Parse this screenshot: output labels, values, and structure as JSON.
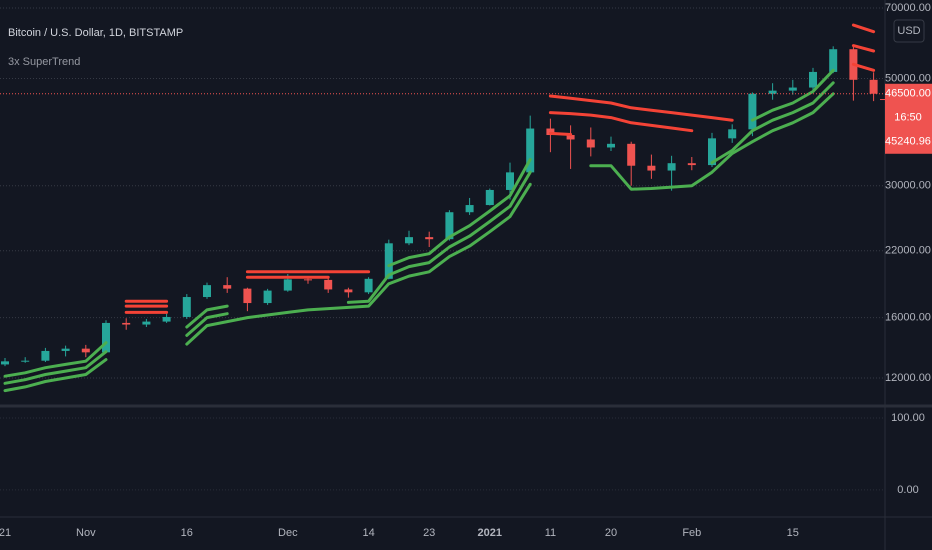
{
  "chart_data": {
    "type": "candlestick",
    "title": "Bitcoin / U.S. Dollar, 1D, BITSTAMP",
    "indicator": "3x SuperTrend",
    "currency": "USD",
    "categories": [
      "21",
      null,
      null,
      null,
      "Nov",
      null,
      null,
      null,
      null,
      "16",
      null,
      null,
      null,
      null,
      "Dec",
      null,
      null,
      null,
      "14",
      null,
      null,
      "23",
      null,
      null,
      "2021",
      null,
      null,
      "11",
      null,
      null,
      "20",
      null,
      null,
      null,
      "Feb",
      null,
      null,
      null,
      null,
      "15",
      null,
      null,
      null,
      null
    ],
    "open": [
      12800,
      12990,
      13030,
      13650,
      13800,
      13560,
      15600,
      15480,
      15700,
      16050,
      17650,
      18680,
      18370,
      17150,
      18200,
      19200,
      19150,
      18300,
      18050,
      19250,
      22800,
      23480,
      23250,
      26440,
      27360,
      29400,
      31970,
      39400,
      38200,
      37400,
      36000,
      36630,
      33000,
      32250,
      33400,
      33100,
      37600,
      39250,
      46500,
      47200,
      47900,
      51600,
      57500,
      49700
    ],
    "high": [
      13200,
      13250,
      13850,
      14000,
      14050,
      15800,
      15950,
      15900,
      16300,
      17900,
      18900,
      19400,
      18450,
      18350,
      19700,
      19400,
      19300,
      18450,
      19400,
      23200,
      24200,
      24100,
      26700,
      28300,
      29600,
      33500,
      41900,
      41300,
      40000,
      39600,
      37900,
      37000,
      34800,
      34600,
      34400,
      38600,
      40200,
      46800,
      48900,
      49700,
      52600,
      58300,
      58300,
      51500
    ],
    "low": [
      12700,
      12900,
      12950,
      13300,
      13250,
      13500,
      15100,
      15300,
      15600,
      15900,
      17500,
      18000,
      16500,
      17000,
      18100,
      18800,
      18000,
      17600,
      17900,
      19200,
      22600,
      22400,
      23100,
      26100,
      27300,
      28100,
      31800,
      35200,
      32500,
      34500,
      35400,
      30000,
      31000,
      29300,
      32300,
      32800,
      36800,
      38000,
      45200,
      46300,
      47000,
      51300,
      45000,
      44900
    ],
    "close": [
      12990,
      13030,
      13650,
      13800,
      13560,
      15600,
      15480,
      15700,
      16050,
      17650,
      18680,
      18370,
      17150,
      18200,
      19200,
      19150,
      18300,
      18050,
      19250,
      22800,
      23480,
      23250,
      26440,
      27360,
      29400,
      31970,
      39400,
      38200,
      37400,
      36000,
      36630,
      33000,
      32250,
      33400,
      33100,
      37600,
      39250,
      46500,
      47200,
      47900,
      51600,
      57500,
      49700,
      46500
    ],
    "up_color": "#26a69a",
    "down_color": "#ef5350",
    "series": [
      {
        "color": "#4caf50",
        "values": [
          12100,
          12300,
          12600,
          12800,
          13000,
          14200,
          null,
          null,
          null,
          15300,
          16600,
          16900,
          null,
          null,
          null,
          null,
          null,
          null,
          null,
          20500,
          21300,
          21700,
          23500,
          24800,
          26600,
          28600,
          34000,
          null,
          null,
          null,
          null,
          null,
          null,
          null,
          null,
          null,
          null,
          41000,
          43000,
          44500,
          47000,
          52000,
          null,
          null
        ]
      },
      {
        "color": "#4caf50",
        "values": [
          11700,
          11900,
          12200,
          12400,
          12600,
          13600,
          null,
          null,
          null,
          14700,
          16000,
          16300,
          null,
          null,
          null,
          null,
          null,
          17200,
          17300,
          19600,
          20400,
          20800,
          22400,
          23600,
          25300,
          27200,
          32000,
          null,
          null,
          null,
          null,
          null,
          null,
          null,
          null,
          33500,
          35500,
          39000,
          41000,
          42500,
          44500,
          49000,
          null,
          null
        ]
      },
      {
        "color": "#4caf50",
        "values": [
          11300,
          11500,
          11800,
          12000,
          12200,
          13100,
          null,
          null,
          null,
          14100,
          15400,
          15700,
          16000,
          16200,
          16400,
          16600,
          16700,
          16800,
          16900,
          18800,
          19500,
          19900,
          21400,
          22500,
          24100,
          25900,
          30200,
          null,
          null,
          33000,
          33000,
          29500,
          29600,
          29800,
          30000,
          32000,
          35000,
          37000,
          39000,
          40500,
          42500,
          46500,
          null,
          null
        ]
      },
      {
        "color": "#f44336",
        "values": [
          null,
          null,
          null,
          null,
          null,
          null,
          17300,
          17300,
          17300,
          null,
          null,
          null,
          19900,
          19900,
          19900,
          19900,
          19900,
          19900,
          19900,
          null,
          null,
          null,
          null,
          null,
          null,
          null,
          null,
          46000,
          45500,
          45000,
          44500,
          43500,
          43000,
          42500,
          42000,
          41500,
          41000,
          null,
          null,
          null,
          null,
          null,
          64500,
          62500
        ]
      },
      {
        "color": "#f44336",
        "values": [
          null,
          null,
          null,
          null,
          null,
          null,
          16900,
          16900,
          16900,
          null,
          null,
          null,
          19400,
          19400,
          19400,
          19400,
          19400,
          null,
          null,
          null,
          null,
          null,
          null,
          null,
          null,
          null,
          null,
          42500,
          42300,
          42000,
          41500,
          40500,
          40000,
          39500,
          39000,
          null,
          null,
          null,
          null,
          null,
          null,
          null,
          58500,
          57000
        ]
      },
      {
        "color": "#f44336",
        "values": [
          null,
          null,
          null,
          null,
          null,
          null,
          16400,
          16400,
          16400,
          null,
          null,
          null,
          null,
          null,
          null,
          null,
          null,
          null,
          null,
          null,
          null,
          null,
          null,
          null,
          null,
          null,
          null,
          38500,
          38300,
          null,
          null,
          null,
          null,
          null,
          null,
          null,
          null,
          null,
          null,
          null,
          null,
          null,
          53500,
          52000
        ]
      }
    ],
    "log_scale": true,
    "grid": true,
    "ylim": [
      10550,
      72700
    ],
    "yticks": [
      {
        "value": 70000,
        "label": "70000.00"
      },
      {
        "value": 50000,
        "label": "50000.00"
      },
      {
        "value": 30000,
        "label": "30000.00"
      },
      {
        "value": 22000,
        "label": "22000.00"
      },
      {
        "value": 16000,
        "label": "16000.00"
      },
      {
        "value": 12000,
        "label": "12000.00"
      }
    ],
    "last_price": {
      "value": 46500,
      "label": "46500.00"
    },
    "countdown": "16:50",
    "reference_price": {
      "value": 45240.96,
      "label": "45240.96"
    },
    "lower_pane": {
      "ylim": [
        -35,
        114
      ],
      "yticks": [
        {
          "value": 100,
          "label": "100.00"
        },
        {
          "value": 0,
          "label": "0.00"
        }
      ]
    }
  }
}
